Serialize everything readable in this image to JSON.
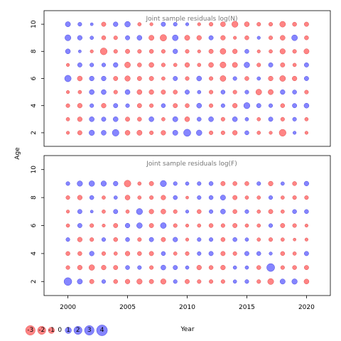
{
  "chart_data": [
    {
      "type": "scatter",
      "title": "Joint sample residuals log(N)",
      "xlabel": "",
      "ylabel": "Age",
      "xlim": [
        1998,
        2022
      ],
      "ylim": [
        1,
        11
      ],
      "yticks": [
        2,
        4,
        6,
        8,
        10
      ],
      "residuals": {
        "ages": [
          2,
          3,
          4,
          5,
          6,
          7,
          8,
          9,
          10
        ],
        "years": [
          2000,
          2001,
          2002,
          2003,
          2004,
          2005,
          2006,
          2007,
          2008,
          2009,
          2010,
          2011,
          2012,
          2013,
          2014,
          2015,
          2016,
          2017,
          2018,
          2019,
          2020
        ],
        "values": [
          [
            -0.4,
            -0.8,
            1.2,
            1.0,
            1.9,
            -1.0,
            -1.1,
            -0.6,
            -0.9,
            1.1,
            2.2,
            1.3,
            -0.6,
            -0.6,
            -0.9,
            0.7,
            -0.5,
            -0.4,
            -2.0,
            0.4,
            -0.4
          ],
          [
            -0.5,
            -0.9,
            1.0,
            0.8,
            1.0,
            -0.8,
            -0.7,
            1.0,
            -0.5,
            1.1,
            -1.0,
            0.7,
            1.0,
            -0.6,
            1.0,
            0.5,
            -0.5,
            0.8,
            -0.6,
            0.6,
            -0.5
          ],
          [
            -0.6,
            -0.9,
            0.6,
            -0.9,
            0.8,
            0.6,
            -0.8,
            -0.6,
            0.7,
            -0.8,
            -0.7,
            1.0,
            -0.6,
            0.6,
            -0.9,
            1.6,
            0.8,
            0.6,
            -0.7,
            0.8,
            1.0
          ],
          [
            -0.4,
            -0.5,
            1.0,
            1.0,
            -0.6,
            1.0,
            -1.0,
            -0.9,
            -0.8,
            -0.7,
            0.8,
            0.5,
            -0.6,
            0.7,
            -0.6,
            0.6,
            -1.4,
            -1.1,
            0.9,
            0.7,
            -0.6
          ],
          [
            1.8,
            -1.0,
            0.9,
            0.9,
            -0.8,
            -1.2,
            -0.8,
            -0.8,
            -0.5,
            0.8,
            -0.6,
            1.0,
            -0.6,
            -1.4,
            0.6,
            -0.7,
            0.5,
            -0.9,
            -1.4,
            -0.9,
            0.8
          ],
          [
            -0.4,
            0.8,
            0.6,
            0.6,
            0.9,
            -1.4,
            -0.7,
            -1.0,
            -0.6,
            -0.5,
            -0.9,
            -0.5,
            -1.0,
            -1.5,
            -1.1,
            1.3,
            -0.6,
            0.8,
            -0.8,
            -0.5,
            0.8
          ],
          [
            1.0,
            0.3,
            -0.4,
            -2.0,
            -0.6,
            -0.8,
            -0.6,
            -0.7,
            -0.6,
            0.9,
            -0.6,
            -0.4,
            -0.8,
            -1.4,
            -0.9,
            0.7,
            -0.4,
            -0.5,
            -1.2,
            -0.6,
            -1.1
          ],
          [
            1.5,
            0.9,
            0.5,
            -0.7,
            -0.6,
            0.8,
            1.0,
            -1.1,
            -1.8,
            1.4,
            -1.1,
            -0.9,
            0.8,
            -0.9,
            -0.4,
            -0.7,
            0.4,
            -0.6,
            -1.0,
            1.4,
            -0.7
          ],
          [
            1.1,
            0.6,
            0.3,
            -0.8,
            0.9,
            1.3,
            -0.5,
            -0.4,
            0.8,
            0.6,
            0.4,
            -0.4,
            -0.6,
            -1.0,
            -1.6,
            -1.0,
            -0.6,
            -0.6,
            -1.4,
            -0.7,
            -0.8
          ]
        ]
      }
    },
    {
      "type": "scatter",
      "title": "Joint sample residuals log(F)",
      "xlabel": "Year",
      "ylabel": "",
      "xlim": [
        1998,
        2022
      ],
      "ylim": [
        1,
        11
      ],
      "yticks": [
        2,
        4,
        6,
        8,
        10
      ],
      "xticks": [
        2000,
        2005,
        2010,
        2015,
        2020
      ],
      "residuals": {
        "ages": [
          2,
          3,
          4,
          5,
          6,
          7,
          8,
          9
        ],
        "years": [
          2000,
          2001,
          2002,
          2003,
          2004,
          2005,
          2006,
          2007,
          2008,
          2009,
          2010,
          2011,
          2012,
          2013,
          2014,
          2015,
          2016,
          2017,
          2018,
          2019,
          2020
        ],
        "values": [
          [
            2.6,
            1.1,
            -0.8,
            0.6,
            -0.7,
            -0.9,
            -1.2,
            -0.8,
            -1.2,
            0.6,
            -0.8,
            -0.6,
            -0.6,
            -0.6,
            0.5,
            0.6,
            -0.6,
            -1.5,
            1.1,
            1.2,
            -1.0
          ],
          [
            -0.6,
            -0.9,
            -1.3,
            -0.9,
            -0.8,
            0.7,
            0.6,
            -0.6,
            1.0,
            0.8,
            0.5,
            -0.9,
            -0.7,
            -0.9,
            0.5,
            0.5,
            -0.7,
            2.7,
            -0.6,
            -0.7,
            -0.8
          ],
          [
            -0.7,
            -0.7,
            0.9,
            -0.6,
            -0.5,
            -0.9,
            -0.7,
            -0.8,
            0.7,
            -0.5,
            -0.6,
            0.6,
            0.8,
            -0.8,
            -0.6,
            0.8,
            0.7,
            0.4,
            -0.7,
            -0.5,
            0.8
          ],
          [
            0.6,
            -0.9,
            -0.6,
            0.6,
            -0.7,
            0.7,
            -0.6,
            0.8,
            -0.8,
            0.9,
            -0.4,
            0.6,
            0.6,
            -0.7,
            0.7,
            0.5,
            -0.5,
            -0.6,
            -0.5,
            -0.3,
            -0.4
          ],
          [
            -0.5,
            0.8,
            -0.6,
            -0.4,
            -0.8,
            0.9,
            1.3,
            -0.8,
            1.4,
            -0.6,
            -0.4,
            -0.5,
            -0.7,
            -0.6,
            -0.8,
            -0.5,
            -0.5,
            0.6,
            -0.8,
            -0.6,
            -0.4
          ],
          [
            -0.4,
            0.8,
            0.3,
            -0.5,
            0.8,
            -0.5,
            1.6,
            -0.9,
            -1.0,
            -0.6,
            0.4,
            -0.7,
            0.6,
            1.0,
            -0.7,
            0.6,
            -0.5,
            -0.8,
            -0.5,
            0.7,
            0.7
          ],
          [
            -0.6,
            -0.9,
            0.7,
            -0.5,
            0.5,
            -1.0,
            -0.5,
            -0.6,
            -0.9,
            0.7,
            -0.3,
            0.6,
            0.7,
            1.1,
            -0.8,
            -0.5,
            -0.5,
            0.6,
            -0.5,
            -0.6,
            -0.6
          ],
          [
            0.6,
            1.2,
            1.3,
            1.2,
            0.9,
            -1.9,
            -0.5,
            -0.8,
            1.6,
            0.6,
            0.5,
            0.6,
            0.7,
            -0.8,
            -0.7,
            -0.7,
            0.6,
            -0.9,
            0.5,
            -0.7,
            0.9
          ]
        ]
      }
    }
  ],
  "legend": {
    "items": [
      {
        "label": "-3",
        "value": -3
      },
      {
        "label": "-2",
        "value": -2
      },
      {
        "label": "-1",
        "value": -1
      },
      {
        "label": "0",
        "value": 0
      },
      {
        "label": "1",
        "value": 1
      },
      {
        "label": "2",
        "value": 2
      },
      {
        "label": "3",
        "value": 3
      },
      {
        "label": "4",
        "value": 4
      }
    ]
  },
  "colors": {
    "negative": "#ff6f6f",
    "negative_stroke": "#e05050",
    "positive": "#7070ff",
    "positive_stroke": "#4a4ae0"
  }
}
